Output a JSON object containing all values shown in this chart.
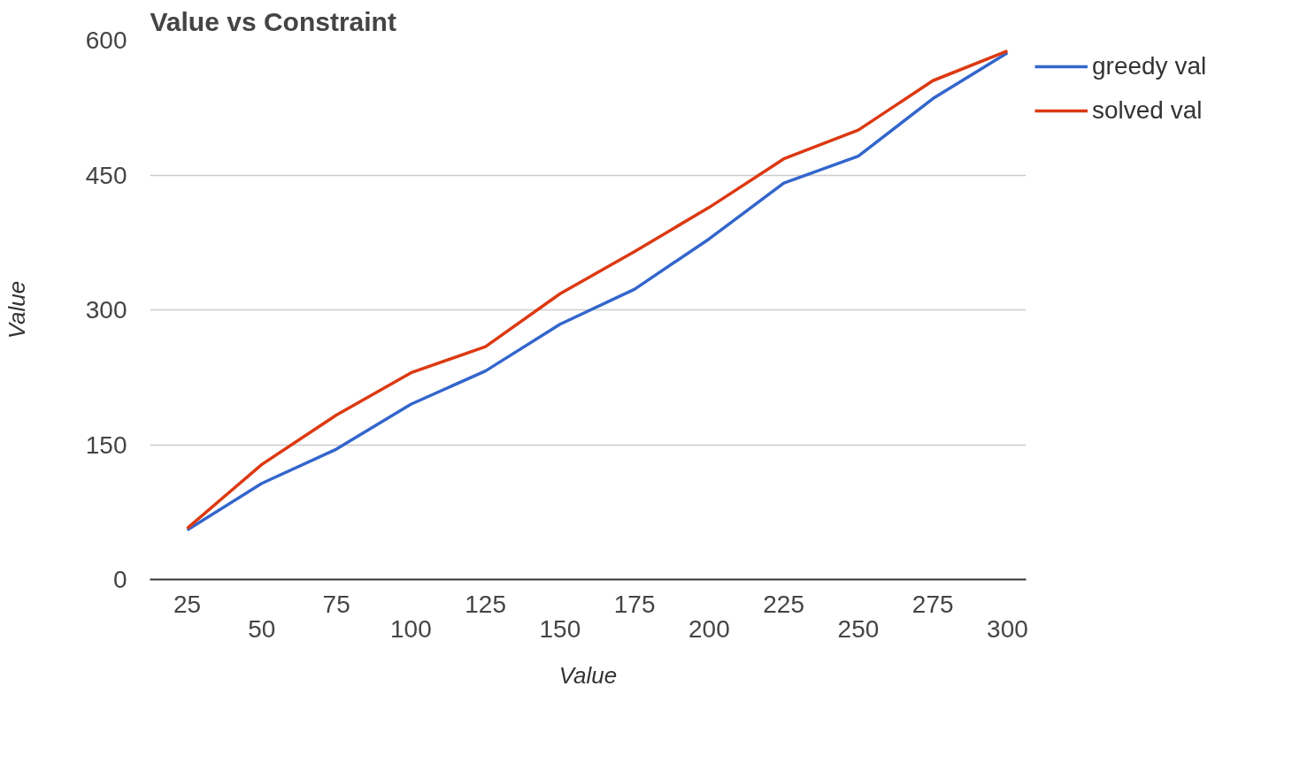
{
  "chart_data": {
    "type": "line",
    "title": "Value vs Constraint",
    "xlabel": "Value",
    "ylabel": "Value",
    "categories": [
      "25",
      "50",
      "75",
      "100",
      "125",
      "150",
      "175",
      "200",
      "225",
      "250",
      "275",
      "300"
    ],
    "series": [
      {
        "name": "greedy val",
        "color": "#3366cc",
        "values": [
          55,
          107,
          145,
          195,
          232,
          284,
          323,
          379,
          441,
          471,
          535,
          586
        ]
      },
      {
        "name": "solved val",
        "color": "#dc3912",
        "values": [
          57,
          128,
          183,
          230,
          259,
          318,
          365,
          414,
          468,
          500,
          555,
          588
        ]
      }
    ],
    "ylim": [
      0,
      600
    ],
    "yticks": [
      0,
      150,
      300,
      450,
      600
    ],
    "grid": "y",
    "legend": "top right",
    "line_style": "solid",
    "marker": "none"
  }
}
